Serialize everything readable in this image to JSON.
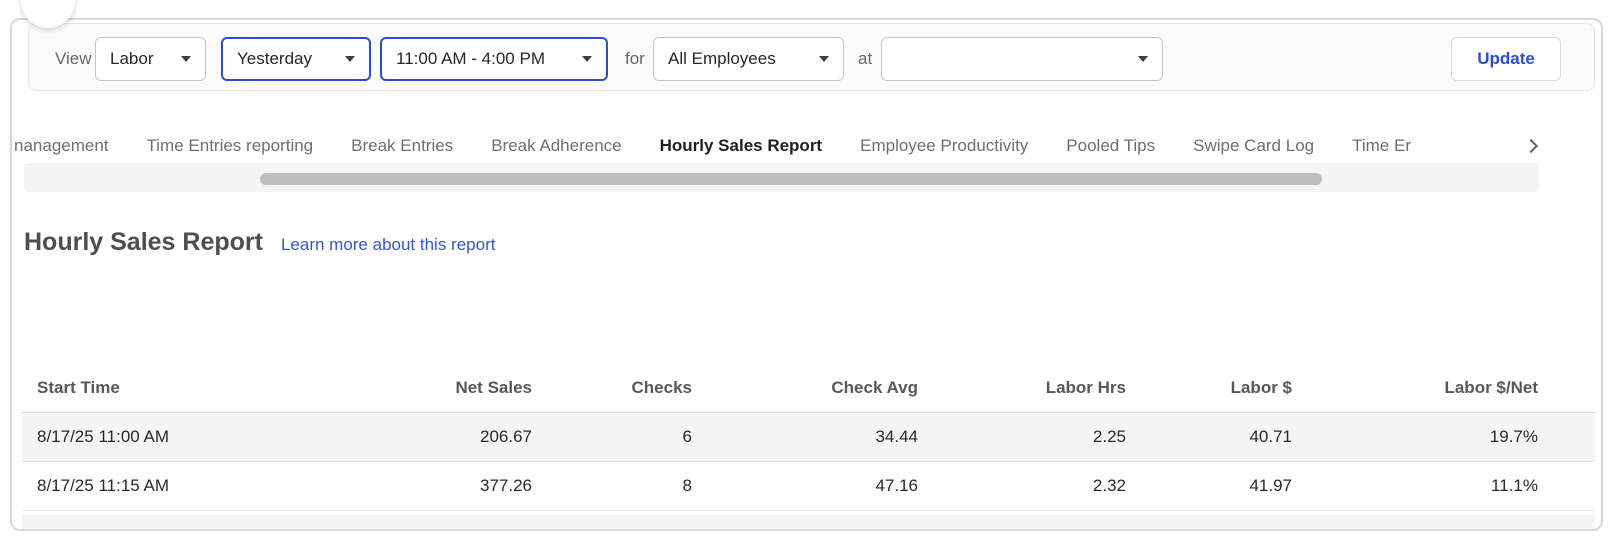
{
  "filter_bar": {
    "view_label": "View",
    "for_label": "for",
    "at_label": "at",
    "update_label": "Update",
    "dropdowns": {
      "report_type": {
        "value": "Labor"
      },
      "date_range": {
        "value": "Yesterday"
      },
      "time_range": {
        "value": "11:00 AM - 4:00 PM"
      },
      "employees": {
        "value": "All Employees"
      },
      "location": {
        "value": ""
      }
    }
  },
  "tabs": {
    "items": [
      {
        "label": "nanagement",
        "active": false
      },
      {
        "label": "Time Entries reporting",
        "active": false
      },
      {
        "label": "Break Entries",
        "active": false
      },
      {
        "label": "Break Adherence",
        "active": false
      },
      {
        "label": "Hourly Sales Report",
        "active": true
      },
      {
        "label": "Employee Productivity",
        "active": false
      },
      {
        "label": "Pooled Tips",
        "active": false
      },
      {
        "label": "Swipe Card Log",
        "active": false
      },
      {
        "label": "Time Er",
        "active": false
      }
    ]
  },
  "report": {
    "title": "Hourly Sales Report",
    "learn_more_label": "Learn more about this report"
  },
  "table": {
    "columns": [
      "Start Time",
      "Net Sales",
      "Checks",
      "Check Avg",
      "Labor Hrs",
      "Labor $",
      "Labor $/Net"
    ],
    "rows": [
      [
        "8/17/25 11:00 AM",
        "206.67",
        "6",
        "34.44",
        "2.25",
        "40.71",
        "19.7%"
      ],
      [
        "8/17/25 11:15 AM",
        "377.26",
        "8",
        "47.16",
        "2.32",
        "41.97",
        "11.1%"
      ]
    ]
  },
  "colors": {
    "accent_blue": "#2a4fc9",
    "link_blue": "#3556cd",
    "update_blue": "#2b4fd0",
    "row_stripe": "#f5f5f6"
  }
}
